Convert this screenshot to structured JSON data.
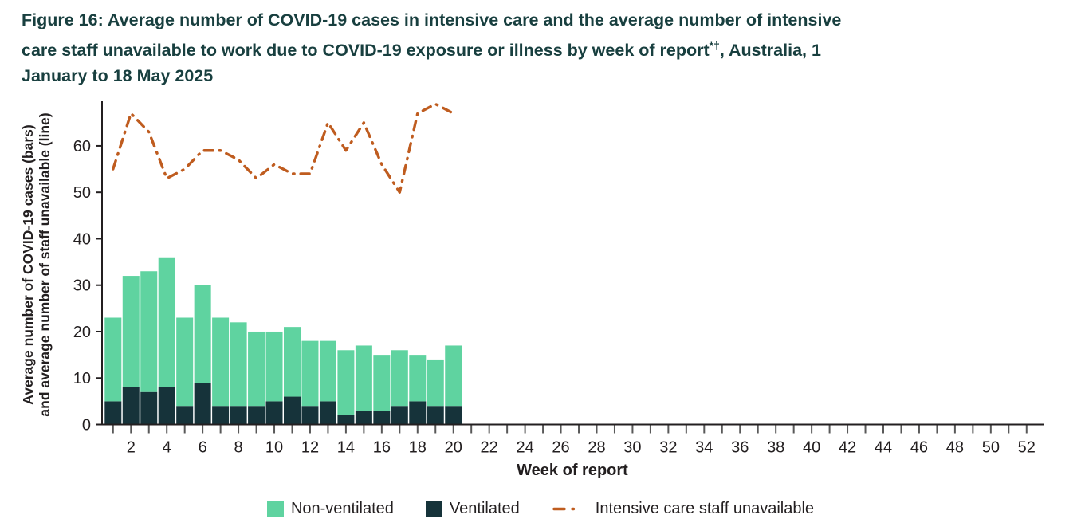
{
  "title": {
    "line1": "Figure 16: Average number of COVID-19 cases in intensive care and the average number of intensive",
    "line2_pre": "care staff unavailable to work due to COVID-19 exposure or illness by week of report",
    "line2_sup": "*†",
    "line2_post": ", Australia, 1",
    "line3": "January to 18 May 2025"
  },
  "colors": {
    "title": "#183f3f",
    "non_ventilated": "#5fd3a0",
    "ventilated": "#16333a",
    "staff_line": "#bf5c1f",
    "axis": "#231f20",
    "tick": "#595959",
    "text": "#231f20"
  },
  "chart_data": {
    "type": "bar",
    "stacked": true,
    "title": "Figure 16: Average number of COVID-19 cases in intensive care and the average number of intensive care staff unavailable to work due to COVID-19 exposure or illness by week of report*†, Australia, 1 January to 18 May 2025",
    "xlabel": "Week of report",
    "ylabel_line1": "Average number of COVID-19 cases (bars)",
    "ylabel_line2": "and average number of staff unavailable (line)",
    "x": [
      1,
      2,
      3,
      4,
      5,
      6,
      7,
      8,
      9,
      10,
      11,
      12,
      13,
      14,
      15,
      16,
      17,
      18,
      19,
      20
    ],
    "bar_series": [
      {
        "name": "Ventilated",
        "color_key": "ventilated",
        "values": [
          5,
          8,
          7,
          8,
          4,
          9,
          4,
          4,
          4,
          5,
          6,
          4,
          5,
          2,
          3,
          3,
          4,
          5,
          4,
          4
        ]
      },
      {
        "name": "Non-ventilated",
        "color_key": "non_ventilated",
        "values": [
          18,
          24,
          26,
          28,
          19,
          21,
          19,
          18,
          16,
          15,
          15,
          14,
          13,
          14,
          14,
          12,
          12,
          10,
          10,
          13
        ]
      }
    ],
    "bar_totals": [
      23,
      32,
      33,
      36,
      23,
      30,
      23,
      22,
      20,
      20,
      21,
      18,
      18,
      16,
      17,
      15,
      16,
      15,
      14,
      17
    ],
    "line_series": [
      {
        "name": "Intensive care staff unavailable",
        "color_key": "staff_line",
        "style": "dash-dot",
        "values": [
          55,
          67,
          63,
          53,
          55,
          59,
          59,
          57,
          53,
          56,
          54,
          54,
          65,
          59,
          65,
          56,
          50,
          67,
          69,
          67
        ]
      }
    ],
    "y_ticks": [
      0,
      10,
      20,
      30,
      40,
      50,
      60
    ],
    "ylim": [
      0,
      70
    ],
    "x_tick_min": 1,
    "x_tick_max": 52,
    "x_label_step": 2,
    "grid": false,
    "legend_position": "bottom",
    "legend": [
      {
        "label": "Non-ventilated",
        "swatch": "square",
        "color_key": "non_ventilated"
      },
      {
        "label": "Ventilated",
        "swatch": "square",
        "color_key": "ventilated"
      },
      {
        "label": "Intensive care staff unavailable",
        "swatch": "dash-dot-line",
        "color_key": "staff_line"
      }
    ]
  }
}
